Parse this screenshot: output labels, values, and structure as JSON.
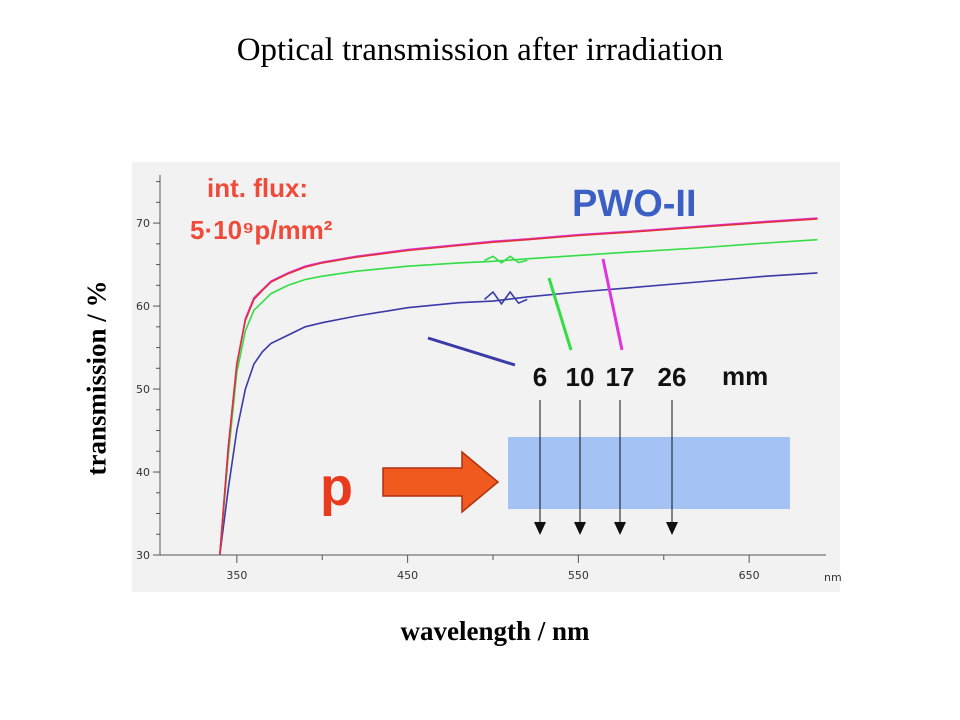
{
  "title": "Optical transmission after irradiation",
  "ylabel": "transmission / %",
  "xlabel": "wavelength / nm",
  "x_unit": "nm",
  "annotations": {
    "flux_line1": "int. flux:",
    "flux_line2": "5·10⁹p/mm²",
    "crystal": "PWO-II",
    "depth_unit": "mm",
    "particle": "p"
  },
  "colors": {
    "plot_background": "#f2f2f2",
    "crystal_block": "#a4c2f4",
    "beam_arrow": "#f05a1e"
  },
  "chart_data": {
    "type": "line",
    "title": "Optical transmission after irradiation",
    "xlabel": "wavelength / nm",
    "ylabel": "transmission / %",
    "xlim": [
      305,
      695
    ],
    "ylim": [
      30,
      77
    ],
    "x_ticks": [
      350,
      450,
      550,
      650
    ],
    "y_ticks": [
      30,
      40,
      50,
      60,
      70
    ],
    "grid": false,
    "x": [
      340,
      345,
      350,
      355,
      360,
      365,
      370,
      380,
      390,
      400,
      420,
      450,
      480,
      500,
      520,
      550,
      580,
      620,
      660,
      690
    ],
    "series": [
      {
        "name": "6",
        "color": "#3a3aa8",
        "values": [
          30,
          38,
          45,
          50,
          53,
          54.5,
          55.5,
          56.5,
          57.5,
          58.0,
          58.8,
          59.8,
          60.4,
          60.6,
          61.1,
          61.7,
          62.2,
          62.9,
          63.6,
          64.0
        ]
      },
      {
        "name": "10",
        "color": "#33dd44",
        "values": [
          30,
          42,
          52,
          57,
          59.5,
          60.5,
          61.5,
          62.5,
          63.2,
          63.6,
          64.2,
          64.8,
          65.2,
          65.4,
          65.7,
          66.1,
          66.5,
          67.0,
          67.6,
          68.0
        ]
      },
      {
        "name": "17",
        "color": "#e033e0",
        "values": [
          30,
          43,
          53,
          58.5,
          61.0,
          62.0,
          63.0,
          64.0,
          64.8,
          65.3,
          66.0,
          66.8,
          67.4,
          67.8,
          68.1,
          68.6,
          69.0,
          69.6,
          70.2,
          70.6
        ]
      },
      {
        "name": "26",
        "color": "#e0303a",
        "values": [
          30,
          43,
          53,
          58.3,
          60.8,
          61.9,
          62.9,
          63.9,
          64.7,
          65.2,
          65.9,
          66.7,
          67.3,
          67.7,
          68.0,
          68.5,
          68.9,
          69.5,
          70.1,
          70.5
        ]
      }
    ],
    "depth_marks": [
      "6",
      "10",
      "17",
      "26"
    ]
  }
}
